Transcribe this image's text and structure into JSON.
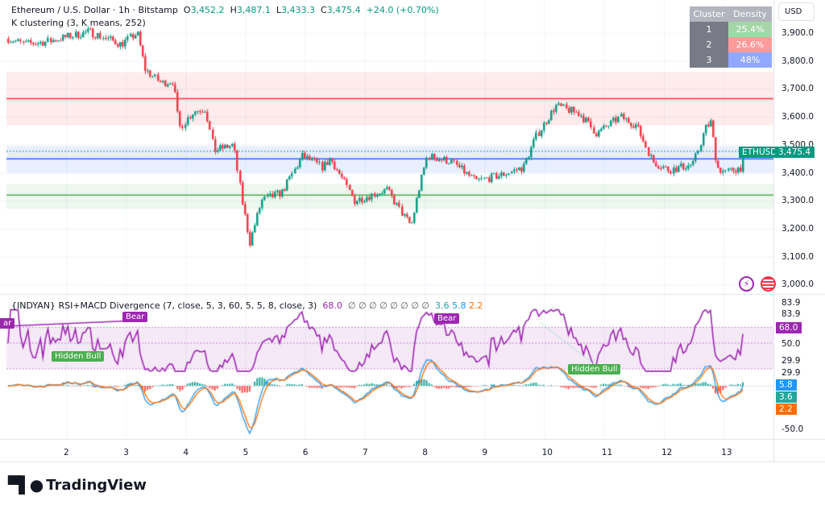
{
  "header": {
    "symbol": "Ethereum / U.S. Dollar · 1h · Bitstamp",
    "o_label": "O",
    "o": "3,452.2",
    "h_label": "H",
    "h": "3,487.1",
    "l_label": "L",
    "l": "3,433.3",
    "c_label": "C",
    "c": "3,475.4",
    "change": "+24.0 (+0.70%)",
    "indicator": "K clustering (3, K means, 252)"
  },
  "cluster_table": {
    "headers": [
      "Cluster",
      "Density"
    ],
    "rows": [
      {
        "id": "1",
        "density": "25.4%",
        "color": "#a5d6a7"
      },
      {
        "id": "2",
        "density": "26.6%",
        "color": "#ff9a9a"
      },
      {
        "id": "3",
        "density": "48%",
        "color": "#90a8ff"
      }
    ]
  },
  "currency": "USD",
  "price_axis": [
    "3,900.0",
    "3,800.0",
    "3,700.0",
    "3,600.0",
    "3,500.0",
    "3,400.0",
    "3,300.0",
    "3,200.0",
    "3,100.0",
    "3,000.0"
  ],
  "price_tag": {
    "symbol": "ETHUSD",
    "value": "3,475.4"
  },
  "rsi_legend": {
    "title": "{INDYAN} RSI+MACD Divergence (7, close, 5, 3, 60, 5, 5, 8, close, 3)",
    "rsi": "68.0",
    "empties": "∅ ∅ ∅ ∅ ∅ ∅ ∅ ∅",
    "v1": "3.6",
    "v2": "5.8",
    "v3": "2.2"
  },
  "rsi_axis": [
    "83.9",
    "83.9",
    "50.0",
    "29.9",
    "29.9",
    "-50.0"
  ],
  "rsi_tags": {
    "rsi": "68.0",
    "macd": "5.8",
    "signal": "3.6",
    "hist": "2.2"
  },
  "divergence_labels": [
    {
      "text": "ar"
    },
    {
      "text": "Bear"
    },
    {
      "text": "Hidden Bull"
    },
    {
      "text": "Bear"
    },
    {
      "text": "Hidden Bull"
    }
  ],
  "x_axis": [
    "2",
    "3",
    "4",
    "5",
    "6",
    "7",
    "8",
    "9",
    "10",
    "11",
    "12",
    "13"
  ],
  "brand": "TradingView",
  "colors": {
    "up": "#089981",
    "down": "#f23645",
    "rsi": "#9c27b0",
    "macd": "#2196f3",
    "signal": "#ff6d00"
  },
  "chart_data": {
    "type": "candlestick",
    "title": "Ethereum / U.S. Dollar · 1h",
    "ylim": [
      2980,
      3960
    ],
    "xlim_days": [
      0.95,
      13.75
    ],
    "price_keypoints": [
      [
        1.03,
        3880
      ],
      [
        1.3,
        3860
      ],
      [
        1.7,
        3870
      ],
      [
        2.38,
        3905
      ],
      [
        2.92,
        3860
      ],
      [
        3.19,
        3900
      ],
      [
        3.32,
        3770
      ],
      [
        3.59,
        3720
      ],
      [
        3.79,
        3730
      ],
      [
        3.89,
        3560
      ],
      [
        4.13,
        3620
      ],
      [
        4.33,
        3630
      ],
      [
        4.47,
        3480
      ],
      [
        4.8,
        3500
      ],
      [
        4.94,
        3300
      ],
      [
        5.07,
        3150
      ],
      [
        5.27,
        3300
      ],
      [
        5.61,
        3330
      ],
      [
        5.95,
        3460
      ],
      [
        6.29,
        3420
      ],
      [
        6.42,
        3450
      ],
      [
        6.56,
        3400
      ],
      [
        6.82,
        3300
      ],
      [
        7.09,
        3320
      ],
      [
        7.36,
        3340
      ],
      [
        7.63,
        3250
      ],
      [
        7.77,
        3210
      ],
      [
        7.9,
        3340
      ],
      [
        8.04,
        3460
      ],
      [
        8.44,
        3440
      ],
      [
        8.85,
        3370
      ],
      [
        9.25,
        3390
      ],
      [
        9.65,
        3420
      ],
      [
        9.86,
        3530
      ],
      [
        10.19,
        3640
      ],
      [
        10.6,
        3610
      ],
      [
        10.87,
        3540
      ],
      [
        11.27,
        3600
      ],
      [
        11.54,
        3570
      ],
      [
        11.81,
        3440
      ],
      [
        12.08,
        3410
      ],
      [
        12.49,
        3430
      ],
      [
        12.69,
        3560
      ],
      [
        12.78,
        3580
      ],
      [
        12.89,
        3420
      ],
      [
        13.02,
        3400
      ],
      [
        13.29,
        3420
      ],
      [
        13.36,
        3475.4
      ]
    ],
    "clusters": [
      {
        "name": "2",
        "low": 3570,
        "high": 3760,
        "center": 3665,
        "color": "#f23645"
      },
      {
        "name": "3",
        "low": 3400,
        "high": 3495,
        "center": 3450,
        "color": "#2962ff"
      },
      {
        "name": "1",
        "low": 3270,
        "high": 3360,
        "center": 3320,
        "color": "#4caf50"
      }
    ],
    "rsi_band": [
      29.9,
      68.0
    ],
    "macd_range": [
      -60,
      40
    ]
  }
}
